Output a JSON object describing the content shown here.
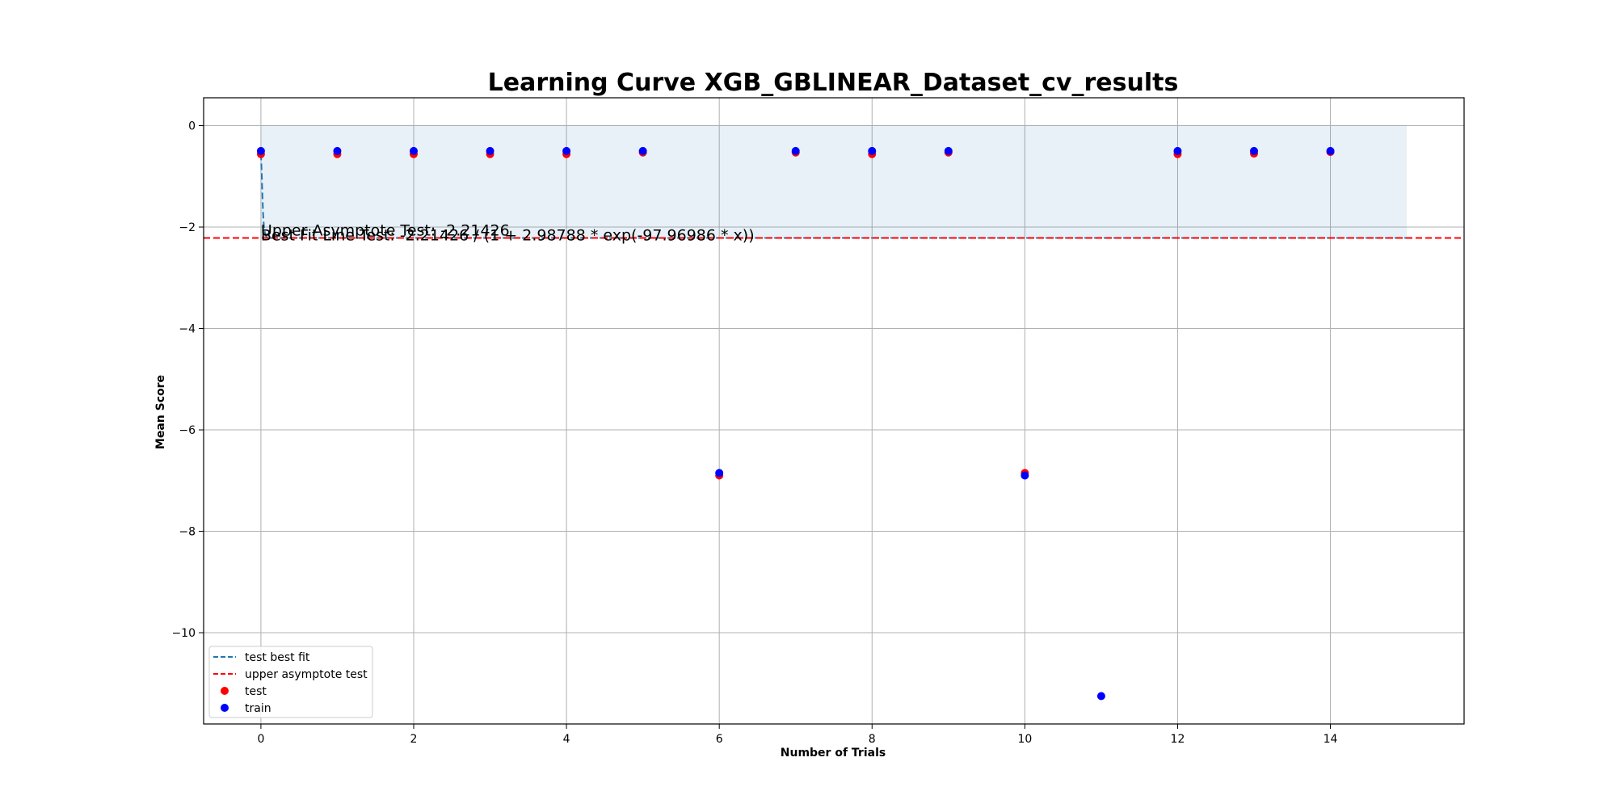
{
  "chart_data": {
    "type": "scatter",
    "title": "Learning Curve XGB_GBLINEAR_Dataset_cv_results",
    "xlabel": "Number of Trials",
    "ylabel": "Mean Score",
    "xlim": [
      -0.75,
      15.75
    ],
    "ylim": [
      -11.8,
      0.55
    ],
    "xticks": [
      0,
      2,
      4,
      6,
      8,
      10,
      12,
      14
    ],
    "yticks": [
      0,
      -2,
      -4,
      -6,
      -8,
      -10
    ],
    "grid": true,
    "legend_position": "lower-left",
    "series": [
      {
        "name": "test best fit",
        "kind": "line",
        "style": "dashed",
        "color": "#1f77b4",
        "x": [
          0,
          0.01,
          0.02,
          0.03,
          0.04,
          0.06,
          0.1,
          0.5,
          1,
          5,
          10,
          15
        ],
        "y": [
          -0.556,
          -0.915,
          -1.386,
          -1.777,
          -1.998,
          -2.171,
          -2.214,
          -2.214,
          -2.214,
          -2.214,
          -2.214,
          -2.214
        ]
      },
      {
        "name": "upper asymptote test",
        "kind": "hline",
        "style": "dashed",
        "color": "#ff0000",
        "y": -2.21426
      },
      {
        "name": "test",
        "kind": "points",
        "color": "#ff0000",
        "x": [
          0,
          1,
          2,
          3,
          4,
          5,
          6,
          7,
          8,
          9,
          10,
          12,
          13,
          14
        ],
        "y": [
          -0.56,
          -0.56,
          -0.56,
          -0.56,
          -0.56,
          -0.53,
          -6.9,
          -0.53,
          -0.56,
          -0.53,
          -6.85,
          -0.56,
          -0.55,
          -0.52
        ]
      },
      {
        "name": "train",
        "kind": "points",
        "color": "#0000ff",
        "x": [
          0,
          1,
          2,
          3,
          4,
          5,
          6,
          7,
          8,
          9,
          10,
          11,
          12,
          13,
          14
        ],
        "y": [
          -0.5,
          -0.5,
          -0.5,
          -0.5,
          -0.5,
          -0.5,
          -6.85,
          -0.5,
          -0.5,
          -0.5,
          -6.9,
          -11.25,
          -0.5,
          -0.5,
          -0.5
        ]
      }
    ],
    "shaded_region": {
      "x": [
        0,
        15
      ],
      "y": [
        -2.21426,
        0
      ],
      "color": "#1f77b4",
      "opacity": 0.1
    },
    "annotations": [
      {
        "text": "Upper Asymptote Test: -2.21426",
        "x": 0,
        "y": -2.21426
      },
      {
        "text": "Best Fit Line Test: -2.21426 / (1 + 2.98788 * exp(-97.96986 * x))",
        "x": 0,
        "y": -2.21426
      }
    ]
  }
}
